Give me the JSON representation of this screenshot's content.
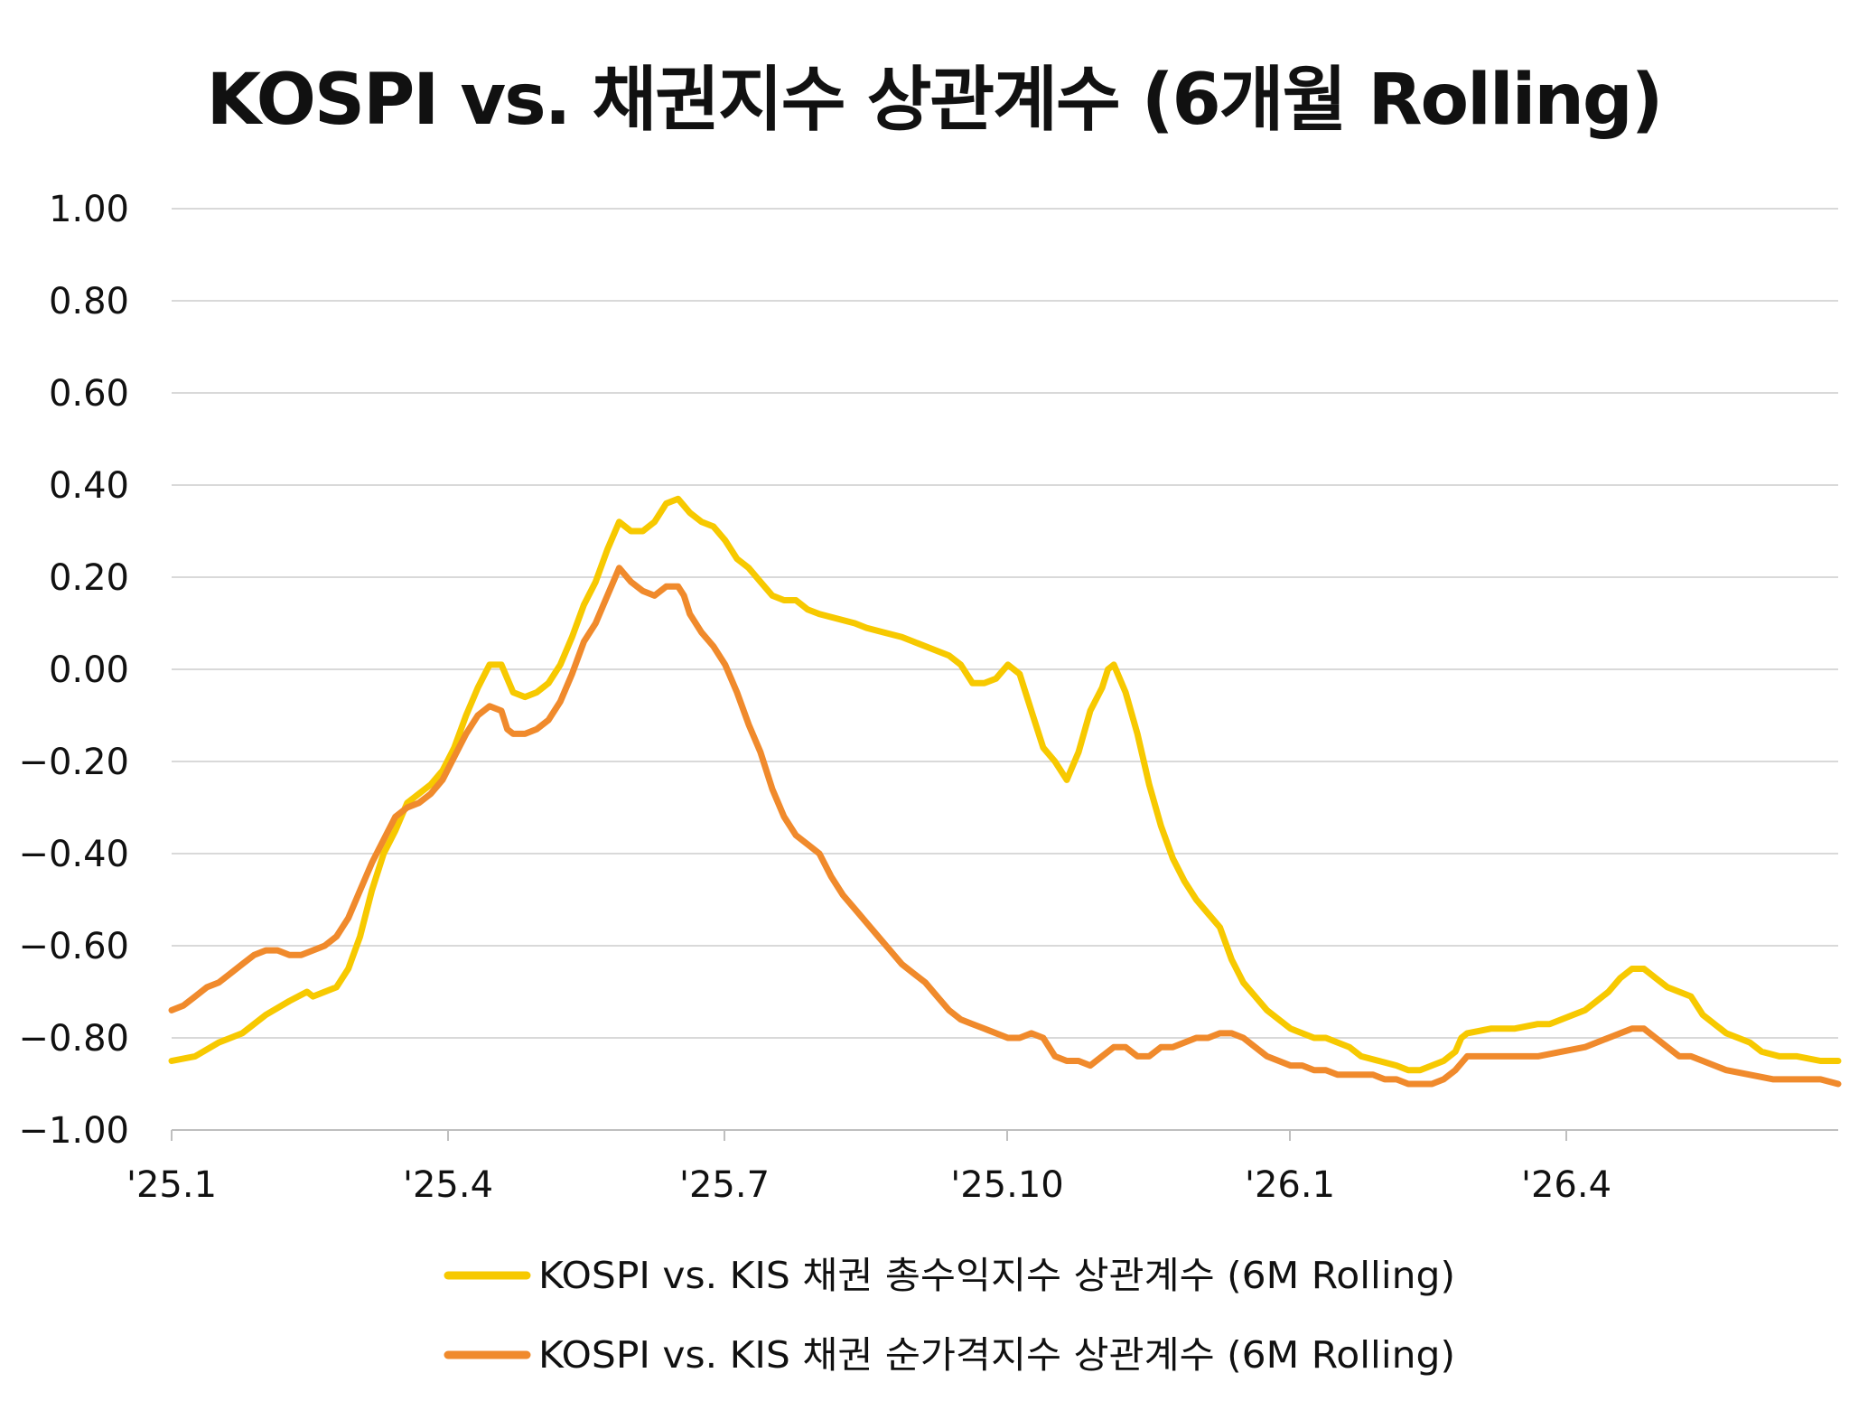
{
  "chart_data": {
    "type": "line",
    "title": "KOSPI vs. 채권지수 상관계수 (6개월 Rolling)",
    "xlabel": "",
    "ylabel": "",
    "ylim": [
      -1.0,
      1.0
    ],
    "y_ticks": [
      "1.00",
      "0.80",
      "0.60",
      "0.40",
      "0.20",
      "0.00",
      "−0.20",
      "−0.40",
      "−0.60",
      "−0.80",
      "−1.00"
    ],
    "x_ticks": [
      "'25.1",
      "'25.4",
      "'25.7",
      "'25.10",
      "'26.1",
      "'26.4"
    ],
    "grid": true,
    "legend_position": "bottom",
    "series": [
      {
        "name": "KOSPI vs. KIS 채권 총수익지수 상관계수 (6M Rolling)",
        "color": "#F7C900",
        "points": [
          [
            0,
            -0.85
          ],
          [
            4,
            -0.84
          ],
          [
            8,
            -0.81
          ],
          [
            12,
            -0.79
          ],
          [
            16,
            -0.75
          ],
          [
            20,
            -0.72
          ],
          [
            23,
            -0.7
          ],
          [
            24,
            -0.71
          ],
          [
            26,
            -0.7
          ],
          [
            28,
            -0.69
          ],
          [
            30,
            -0.65
          ],
          [
            32,
            -0.58
          ],
          [
            34,
            -0.48
          ],
          [
            36,
            -0.4
          ],
          [
            38,
            -0.35
          ],
          [
            40,
            -0.29
          ],
          [
            42,
            -0.27
          ],
          [
            44,
            -0.25
          ],
          [
            46,
            -0.22
          ],
          [
            48,
            -0.17
          ],
          [
            50,
            -0.1
          ],
          [
            52,
            -0.04
          ],
          [
            54,
            0.01
          ],
          [
            56,
            0.01
          ],
          [
            57,
            -0.02
          ],
          [
            58,
            -0.05
          ],
          [
            60,
            -0.06
          ],
          [
            62,
            -0.05
          ],
          [
            64,
            -0.03
          ],
          [
            66,
            0.01
          ],
          [
            68,
            0.07
          ],
          [
            70,
            0.14
          ],
          [
            72,
            0.19
          ],
          [
            74,
            0.26
          ],
          [
            76,
            0.32
          ],
          [
            78,
            0.3
          ],
          [
            80,
            0.3
          ],
          [
            82,
            0.32
          ],
          [
            84,
            0.36
          ],
          [
            86,
            0.37
          ],
          [
            88,
            0.34
          ],
          [
            90,
            0.32
          ],
          [
            92,
            0.31
          ],
          [
            94,
            0.28
          ],
          [
            96,
            0.24
          ],
          [
            98,
            0.22
          ],
          [
            100,
            0.19
          ],
          [
            102,
            0.16
          ],
          [
            104,
            0.15
          ],
          [
            106,
            0.15
          ],
          [
            108,
            0.13
          ],
          [
            110,
            0.12
          ],
          [
            113,
            0.11
          ],
          [
            116,
            0.1
          ],
          [
            118,
            0.09
          ],
          [
            121,
            0.08
          ],
          [
            124,
            0.07
          ],
          [
            126,
            0.06
          ],
          [
            128,
            0.05
          ],
          [
            130,
            0.04
          ],
          [
            132,
            0.03
          ],
          [
            134,
            0.01
          ],
          [
            136,
            -0.03
          ],
          [
            138,
            -0.03
          ],
          [
            140,
            -0.02
          ],
          [
            142,
            0.01
          ],
          [
            144,
            -0.01
          ],
          [
            146,
            -0.09
          ],
          [
            148,
            -0.17
          ],
          [
            150,
            -0.2
          ],
          [
            152,
            -0.24
          ],
          [
            154,
            -0.18
          ],
          [
            156,
            -0.09
          ],
          [
            158,
            -0.04
          ],
          [
            159,
            0.0
          ],
          [
            160,
            0.01
          ],
          [
            162,
            -0.05
          ],
          [
            164,
            -0.14
          ],
          [
            166,
            -0.25
          ],
          [
            168,
            -0.34
          ],
          [
            170,
            -0.41
          ],
          [
            172,
            -0.46
          ],
          [
            174,
            -0.5
          ],
          [
            176,
            -0.53
          ],
          [
            178,
            -0.56
          ],
          [
            180,
            -0.63
          ],
          [
            182,
            -0.68
          ],
          [
            184,
            -0.71
          ],
          [
            186,
            -0.74
          ],
          [
            188,
            -0.76
          ],
          [
            190,
            -0.78
          ],
          [
            192,
            -0.79
          ],
          [
            194,
            -0.8
          ],
          [
            196,
            -0.8
          ],
          [
            198,
            -0.81
          ],
          [
            200,
            -0.82
          ],
          [
            202,
            -0.84
          ],
          [
            205,
            -0.85
          ],
          [
            208,
            -0.86
          ],
          [
            210,
            -0.87
          ],
          [
            212,
            -0.87
          ],
          [
            214,
            -0.86
          ],
          [
            216,
            -0.85
          ],
          [
            218,
            -0.83
          ],
          [
            219,
            -0.8
          ],
          [
            220,
            -0.79
          ],
          [
            224,
            -0.78
          ],
          [
            228,
            -0.78
          ],
          [
            232,
            -0.77
          ],
          [
            234,
            -0.77
          ],
          [
            236,
            -0.76
          ],
          [
            238,
            -0.75
          ],
          [
            240,
            -0.74
          ],
          [
            242,
            -0.72
          ],
          [
            244,
            -0.7
          ],
          [
            246,
            -0.67
          ],
          [
            248,
            -0.65
          ],
          [
            250,
            -0.65
          ],
          [
            252,
            -0.67
          ],
          [
            254,
            -0.69
          ],
          [
            256,
            -0.7
          ],
          [
            258,
            -0.71
          ],
          [
            260,
            -0.75
          ],
          [
            262,
            -0.77
          ],
          [
            264,
            -0.79
          ],
          [
            266,
            -0.8
          ],
          [
            268,
            -0.81
          ],
          [
            270,
            -0.83
          ],
          [
            273,
            -0.84
          ],
          [
            276,
            -0.84
          ],
          [
            280,
            -0.85
          ],
          [
            283,
            -0.85
          ]
        ]
      },
      {
        "name": "KOSPI vs. KIS 채권 순가격지수 상관계수 (6M Rolling)",
        "color": "#F08A2C",
        "points": [
          [
            0,
            -0.74
          ],
          [
            2,
            -0.73
          ],
          [
            4,
            -0.71
          ],
          [
            6,
            -0.69
          ],
          [
            8,
            -0.68
          ],
          [
            10,
            -0.66
          ],
          [
            12,
            -0.64
          ],
          [
            14,
            -0.62
          ],
          [
            16,
            -0.61
          ],
          [
            18,
            -0.61
          ],
          [
            20,
            -0.62
          ],
          [
            22,
            -0.62
          ],
          [
            24,
            -0.61
          ],
          [
            26,
            -0.6
          ],
          [
            28,
            -0.58
          ],
          [
            30,
            -0.54
          ],
          [
            32,
            -0.48
          ],
          [
            34,
            -0.42
          ],
          [
            36,
            -0.37
          ],
          [
            38,
            -0.32
          ],
          [
            40,
            -0.3
          ],
          [
            42,
            -0.29
          ],
          [
            44,
            -0.27
          ],
          [
            46,
            -0.24
          ],
          [
            48,
            -0.19
          ],
          [
            50,
            -0.14
          ],
          [
            52,
            -0.1
          ],
          [
            54,
            -0.08
          ],
          [
            56,
            -0.09
          ],
          [
            57,
            -0.13
          ],
          [
            58,
            -0.14
          ],
          [
            60,
            -0.14
          ],
          [
            62,
            -0.13
          ],
          [
            64,
            -0.11
          ],
          [
            66,
            -0.07
          ],
          [
            68,
            -0.01
          ],
          [
            70,
            0.06
          ],
          [
            72,
            0.1
          ],
          [
            74,
            0.16
          ],
          [
            76,
            0.22
          ],
          [
            78,
            0.19
          ],
          [
            80,
            0.17
          ],
          [
            82,
            0.16
          ],
          [
            84,
            0.18
          ],
          [
            86,
            0.18
          ],
          [
            87,
            0.16
          ],
          [
            88,
            0.12
          ],
          [
            90,
            0.08
          ],
          [
            92,
            0.05
          ],
          [
            94,
            0.01
          ],
          [
            96,
            -0.05
          ],
          [
            98,
            -0.12
          ],
          [
            100,
            -0.18
          ],
          [
            102,
            -0.26
          ],
          [
            104,
            -0.32
          ],
          [
            106,
            -0.36
          ],
          [
            108,
            -0.38
          ],
          [
            110,
            -0.4
          ],
          [
            112,
            -0.45
          ],
          [
            114,
            -0.49
          ],
          [
            116,
            -0.52
          ],
          [
            118,
            -0.55
          ],
          [
            120,
            -0.58
          ],
          [
            122,
            -0.61
          ],
          [
            124,
            -0.64
          ],
          [
            126,
            -0.66
          ],
          [
            128,
            -0.68
          ],
          [
            130,
            -0.71
          ],
          [
            132,
            -0.74
          ],
          [
            134,
            -0.76
          ],
          [
            136,
            -0.77
          ],
          [
            138,
            -0.78
          ],
          [
            140,
            -0.79
          ],
          [
            142,
            -0.8
          ],
          [
            144,
            -0.8
          ],
          [
            146,
            -0.79
          ],
          [
            148,
            -0.8
          ],
          [
            150,
            -0.84
          ],
          [
            152,
            -0.85
          ],
          [
            154,
            -0.85
          ],
          [
            156,
            -0.86
          ],
          [
            158,
            -0.84
          ],
          [
            160,
            -0.82
          ],
          [
            162,
            -0.82
          ],
          [
            164,
            -0.84
          ],
          [
            166,
            -0.84
          ],
          [
            168,
            -0.82
          ],
          [
            170,
            -0.82
          ],
          [
            172,
            -0.81
          ],
          [
            174,
            -0.8
          ],
          [
            176,
            -0.8
          ],
          [
            178,
            -0.79
          ],
          [
            180,
            -0.79
          ],
          [
            182,
            -0.8
          ],
          [
            184,
            -0.82
          ],
          [
            186,
            -0.84
          ],
          [
            188,
            -0.85
          ],
          [
            190,
            -0.86
          ],
          [
            192,
            -0.86
          ],
          [
            194,
            -0.87
          ],
          [
            196,
            -0.87
          ],
          [
            198,
            -0.88
          ],
          [
            200,
            -0.88
          ],
          [
            202,
            -0.88
          ],
          [
            204,
            -0.88
          ],
          [
            206,
            -0.89
          ],
          [
            208,
            -0.89
          ],
          [
            210,
            -0.9
          ],
          [
            212,
            -0.9
          ],
          [
            214,
            -0.9
          ],
          [
            216,
            -0.89
          ],
          [
            218,
            -0.87
          ],
          [
            220,
            -0.84
          ],
          [
            224,
            -0.84
          ],
          [
            228,
            -0.84
          ],
          [
            232,
            -0.84
          ],
          [
            236,
            -0.83
          ],
          [
            240,
            -0.82
          ],
          [
            244,
            -0.8
          ],
          [
            248,
            -0.78
          ],
          [
            250,
            -0.78
          ],
          [
            252,
            -0.8
          ],
          [
            254,
            -0.82
          ],
          [
            256,
            -0.84
          ],
          [
            258,
            -0.84
          ],
          [
            260,
            -0.85
          ],
          [
            262,
            -0.86
          ],
          [
            264,
            -0.87
          ],
          [
            268,
            -0.88
          ],
          [
            272,
            -0.89
          ],
          [
            276,
            -0.89
          ],
          [
            280,
            -0.89
          ],
          [
            283,
            -0.9
          ]
        ]
      }
    ]
  }
}
